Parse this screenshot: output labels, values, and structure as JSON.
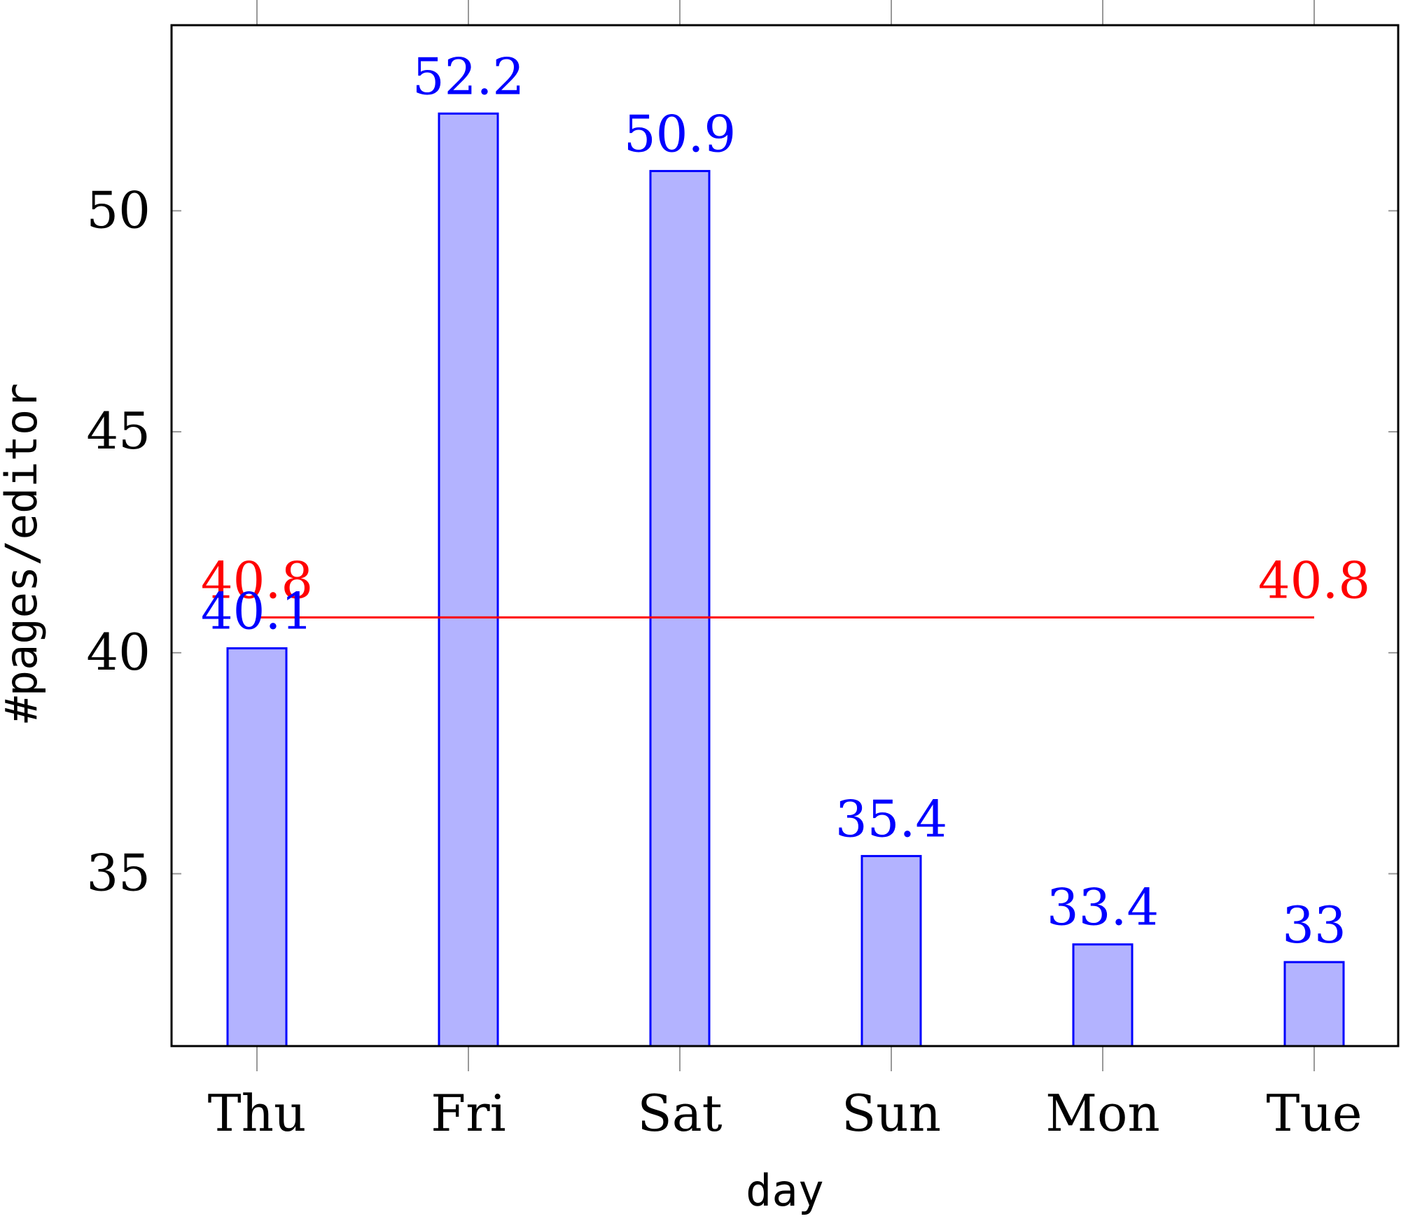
{
  "chart_data": {
    "type": "bar",
    "categories": [
      "Thu",
      "Fri",
      "Sat",
      "Sun",
      "Mon",
      "Tue"
    ],
    "series": [
      {
        "values": [
          40.1,
          52.2,
          50.9,
          35.4,
          33.4,
          33
        ]
      }
    ],
    "data_labels": [
      "40.1",
      "52.2",
      "50.9",
      "35.4",
      "33.4",
      "33"
    ],
    "reference_line": {
      "value": 40.8,
      "label": "40.8",
      "color": "#ff0000"
    },
    "xlabel": "day",
    "ylabel": "#pages/editor",
    "ylim": [
      31.1,
      54.2
    ],
    "yticks": [
      35,
      40,
      45,
      50
    ],
    "ytick_labels": [
      "35",
      "40",
      "45",
      "50"
    ],
    "grid": false,
    "colors": {
      "bar_fill": "#b3b3ff",
      "bar_stroke": "#0000ff",
      "label": "#0000ff",
      "reference": "#ff0000"
    }
  }
}
